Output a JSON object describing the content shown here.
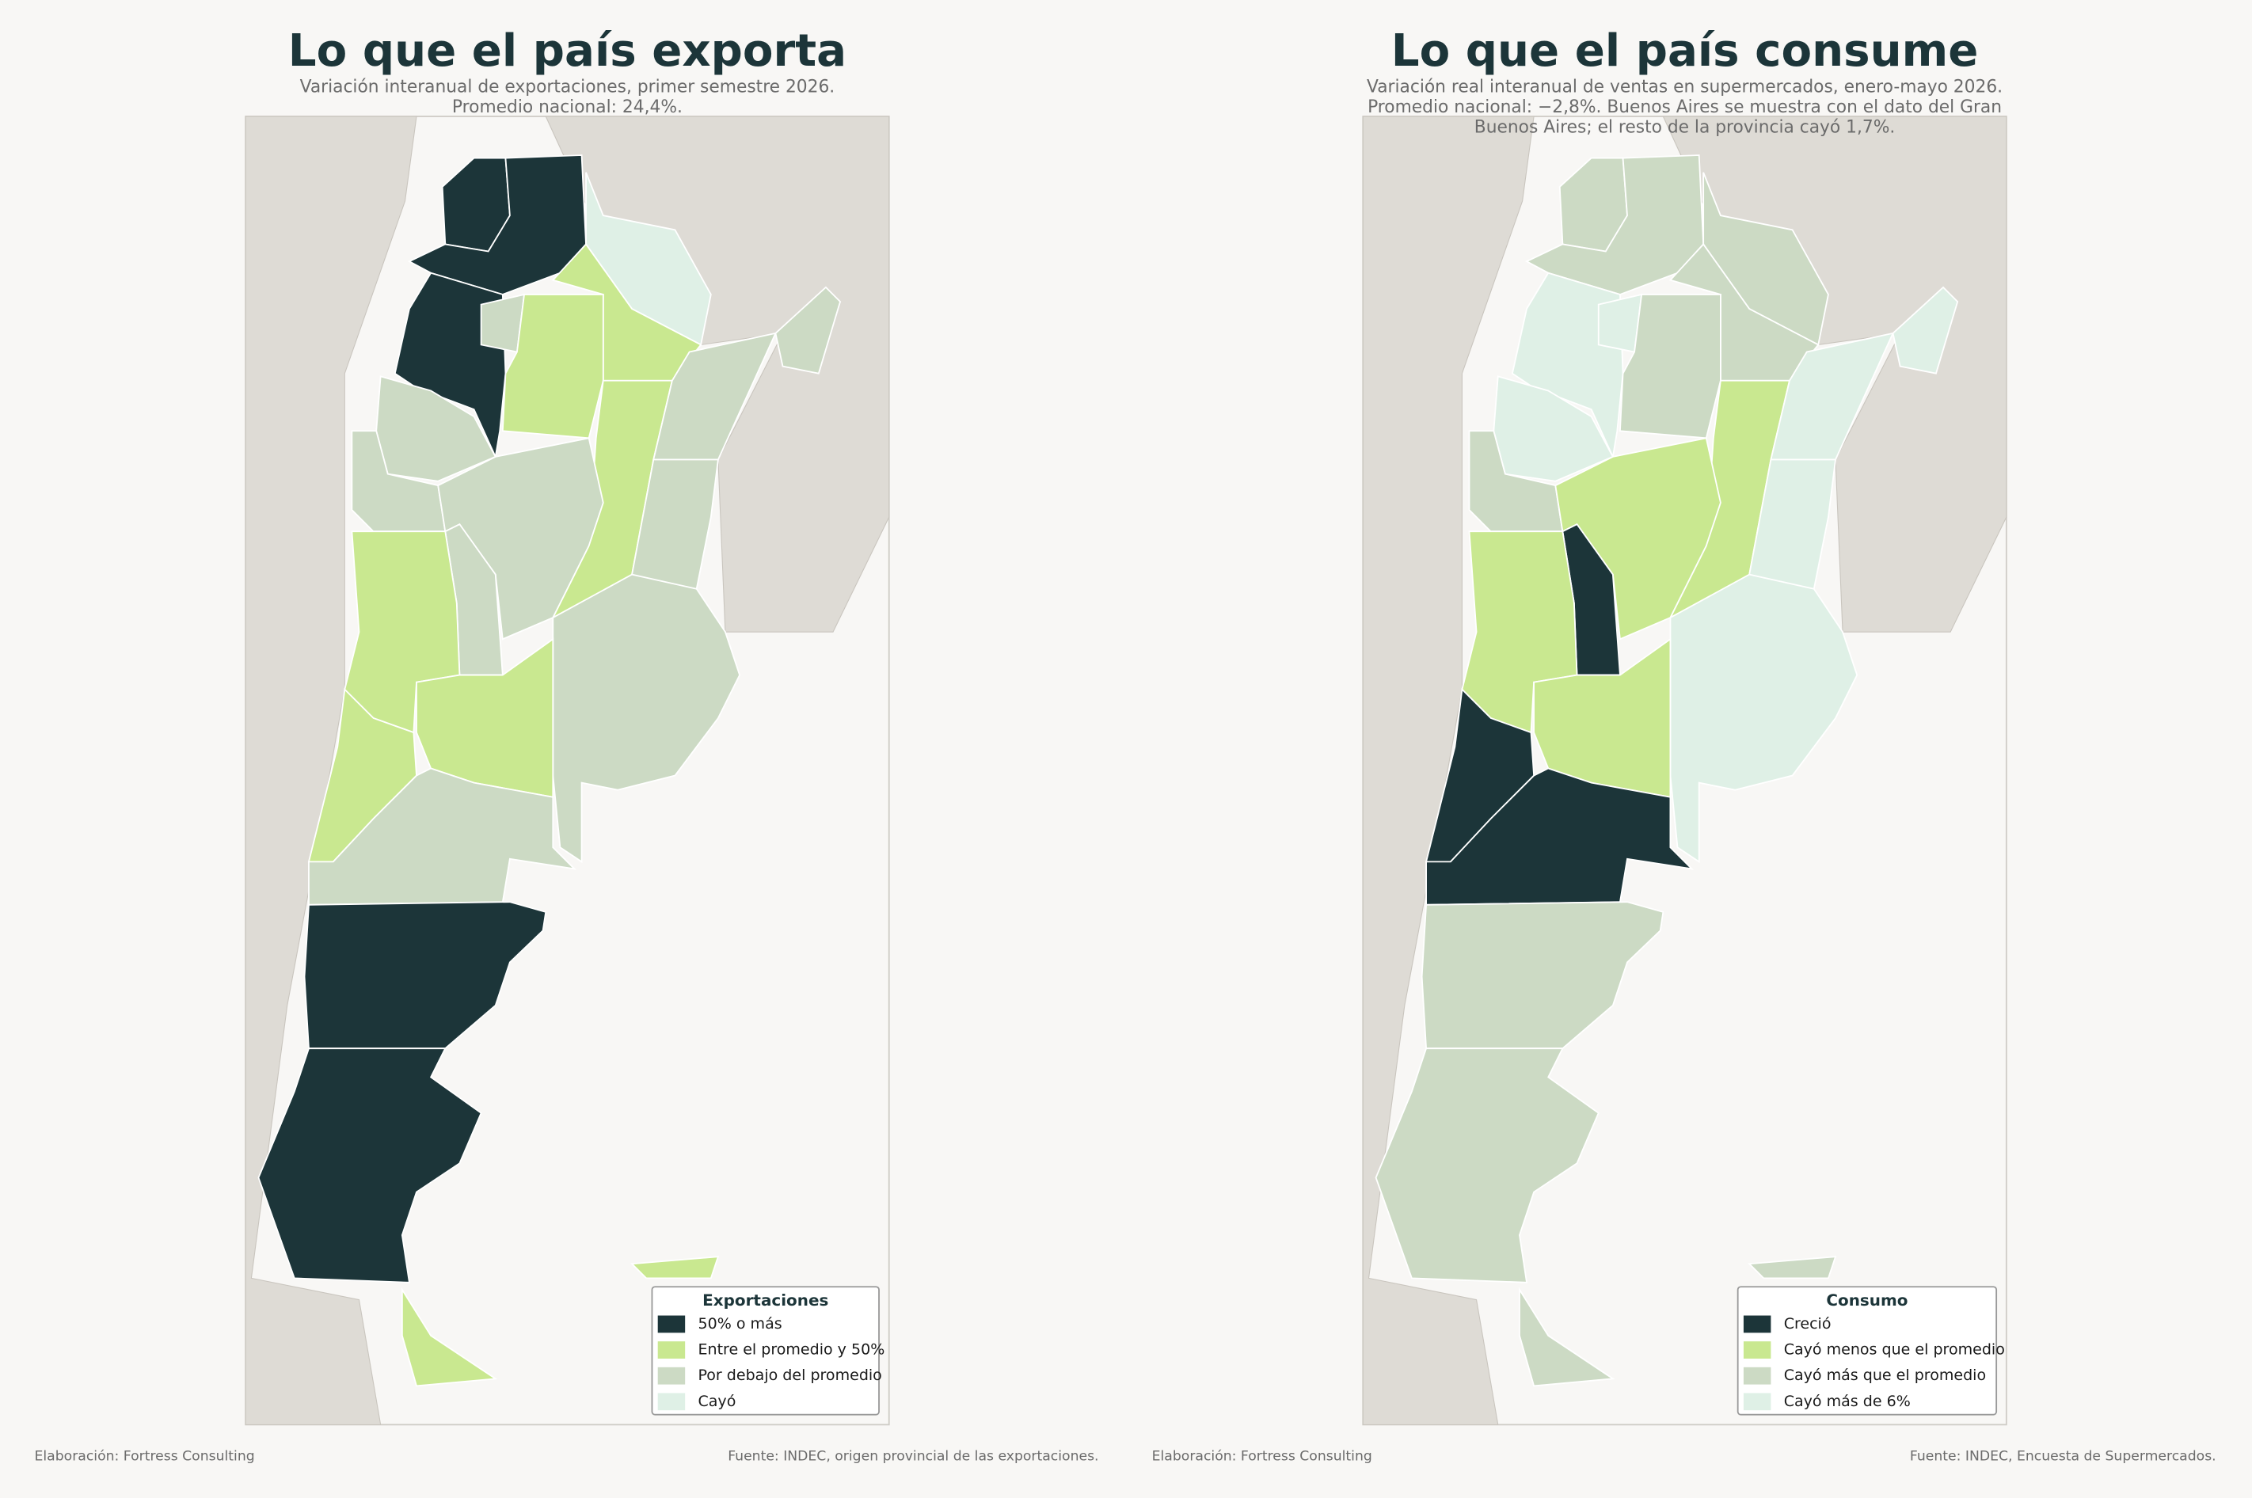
{
  "maps": [
    {
      "title": "Lo que el país exporta",
      "subtitle_lines": [
        "Variación interanual de exportaciones, primer semestre 2026.",
        "Promedio nacional: 24,4%."
      ],
      "legend": {
        "title": "Exportaciones",
        "items": [
          {
            "label": "50% o más",
            "color": "#1c3539"
          },
          {
            "label": "Entre el promedio y 50%",
            "color": "#c9e890"
          },
          {
            "label": "Por debajo del promedio",
            "color": "#ccdac4"
          },
          {
            "label": "Cayó",
            "color": "#dff0e6"
          }
        ]
      },
      "credit": "Elaboración: Fortress Consulting",
      "source": "Fuente: INDEC, origen provincial de las exportaciones."
    },
    {
      "title": "Lo que el país consume",
      "subtitle_lines": [
        "Variación real interanual de ventas en supermercados, enero-mayo 2026.",
        "Promedio nacional: −2,8%. Buenos Aires se muestra con el dato del Gran",
        "Buenos Aires; el resto de la provincia cayó 1,7%."
      ],
      "legend": {
        "title": "Consumo",
        "items": [
          {
            "label": "Creció",
            "color": "#1c3539"
          },
          {
            "label": "Cayó menos que el promedio",
            "color": "#c9e890"
          },
          {
            "label": "Cayó más que el promedio",
            "color": "#ccdac4"
          },
          {
            "label": "Cayó más de 6%",
            "color": "#dff0e6"
          }
        ]
      },
      "credit": "Elaboración: Fortress Consulting",
      "source": "Fuente: INDEC, Encuesta de Supermercados."
    }
  ]
}
